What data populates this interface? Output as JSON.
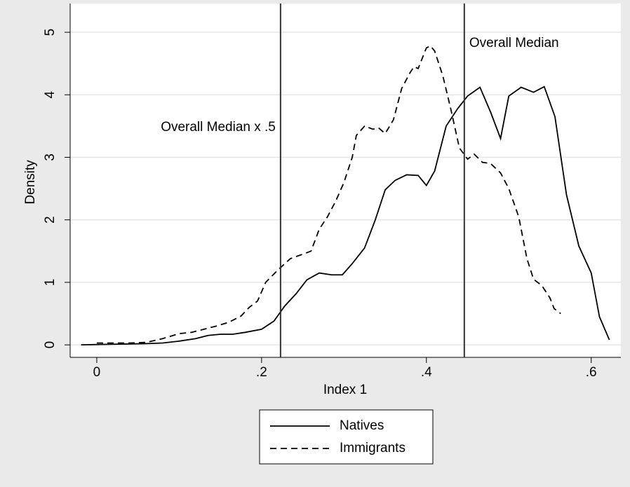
{
  "chart_data": {
    "type": "line",
    "x_label": "Index 1",
    "y_label": "Density",
    "xlim": [
      -0.0323,
      0.636
    ],
    "ylim": [
      -0.2,
      5.46
    ],
    "xticks": [
      0,
      {
        "value": 0.2,
        "label": ".2"
      },
      {
        "value": 0.4,
        "label": ".4"
      },
      {
        "value": 0.6,
        "label": ".6"
      }
    ],
    "yticks": [
      0,
      1,
      2,
      3,
      4,
      5
    ],
    "grid": true,
    "vlines": [
      0.223,
      0.446
    ],
    "annotations": [
      "Overall Median x .5",
      "Overall Median"
    ],
    "series": [
      {
        "name": "Natives",
        "color": "#000000",
        "dash": "solid",
        "x": [
          -0.019,
          0,
          0.02,
          0.04,
          0.06,
          0.08,
          0.1,
          0.12,
          0.135,
          0.15,
          0.165,
          0.18,
          0.2,
          0.215,
          0.228,
          0.242,
          0.255,
          0.27,
          0.285,
          0.298,
          0.31,
          0.325,
          0.338,
          0.35,
          0.362,
          0.376,
          0.39,
          0.4,
          0.41,
          0.424,
          0.438,
          0.45,
          0.465,
          0.478,
          0.49,
          0.5,
          0.515,
          0.53,
          0.543,
          0.556,
          0.57,
          0.585,
          0.6,
          0.61,
          0.622
        ],
        "values": [
          0,
          0.005,
          0.01,
          0.015,
          0.02,
          0.03,
          0.06,
          0.1,
          0.15,
          0.17,
          0.17,
          0.2,
          0.25,
          0.38,
          0.62,
          0.82,
          1.04,
          1.15,
          1.12,
          1.12,
          1.3,
          1.55,
          2.0,
          2.48,
          2.63,
          2.72,
          2.71,
          2.55,
          2.78,
          3.5,
          3.78,
          3.98,
          4.12,
          3.72,
          3.3,
          3.98,
          4.12,
          4.04,
          4.13,
          3.65,
          2.4,
          1.58,
          1.15,
          0.45,
          0.08
        ]
      },
      {
        "name": "Immigrants",
        "color": "#000000",
        "dash": "dashed",
        "x": [
          0,
          0.02,
          0.04,
          0.06,
          0.08,
          0.1,
          0.115,
          0.13,
          0.145,
          0.16,
          0.175,
          0.185,
          0.195,
          0.205,
          0.22,
          0.235,
          0.25,
          0.26,
          0.27,
          0.28,
          0.29,
          0.3,
          0.31,
          0.315,
          0.325,
          0.335,
          0.342,
          0.35,
          0.36,
          0.37,
          0.38,
          0.385,
          0.39,
          0.4,
          0.405,
          0.41,
          0.42,
          0.43,
          0.44,
          0.45,
          0.458,
          0.468,
          0.478,
          0.49,
          0.5,
          0.512,
          0.522,
          0.53,
          0.54,
          0.55,
          0.555,
          0.563
        ],
        "values": [
          0.03,
          0.03,
          0.03,
          0.04,
          0.1,
          0.18,
          0.2,
          0.25,
          0.3,
          0.36,
          0.46,
          0.6,
          0.7,
          1.0,
          1.2,
          1.38,
          1.45,
          1.5,
          1.85,
          2.05,
          2.3,
          2.6,
          3.0,
          3.35,
          3.5,
          3.45,
          3.47,
          3.38,
          3.6,
          4.1,
          4.35,
          4.45,
          4.42,
          4.75,
          4.78,
          4.7,
          4.3,
          3.75,
          3.15,
          2.97,
          3.05,
          2.92,
          2.9,
          2.75,
          2.5,
          2.05,
          1.38,
          1.05,
          0.95,
          0.75,
          0.58,
          0.5
        ]
      }
    ]
  }
}
